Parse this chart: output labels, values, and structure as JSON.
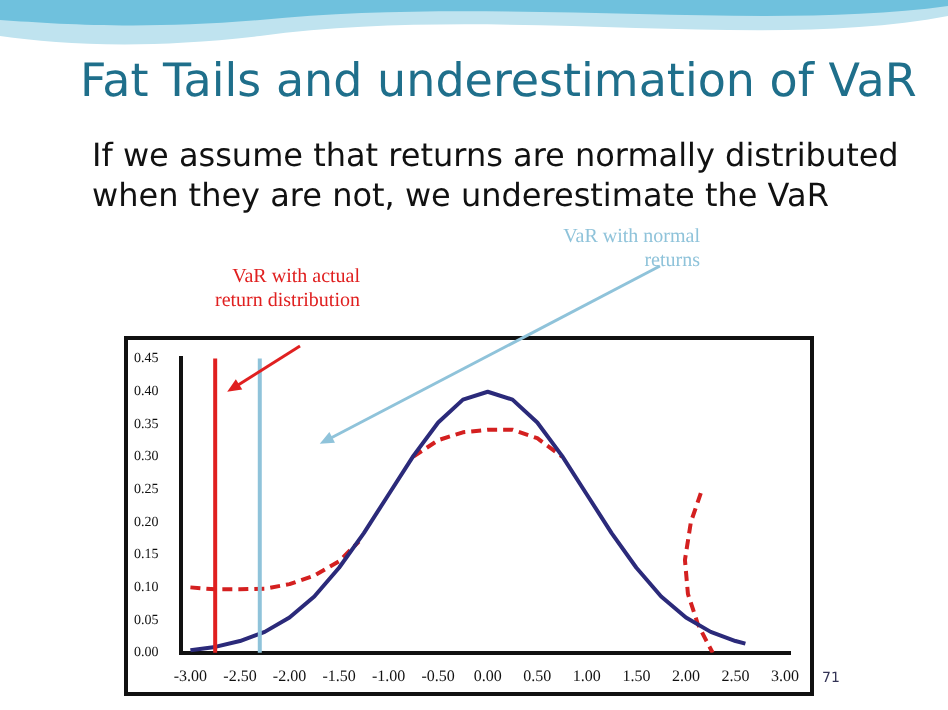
{
  "chart_data": {
    "type": "line",
    "title": "Fat Tails and underestimation of VaR",
    "subtitle": "If we assume that returns are normally distributed when they are not, we underestimate the VaR",
    "xlim": [
      -3.1,
      3.05
    ],
    "xticks": [
      {
        "value": -3,
        "label": "-3.00"
      },
      {
        "value": -2.5,
        "label": "-2.50"
      },
      {
        "value": -2,
        "label": "-2.00"
      },
      {
        "value": -1.5,
        "label": "-1.50"
      },
      {
        "value": -1,
        "label": "-1.00"
      },
      {
        "value": -0.5,
        "label": "-0.50"
      },
      {
        "value": 0,
        "label": "0.00"
      },
      {
        "value": 0.5,
        "label": "0.50"
      },
      {
        "value": 1,
        "label": "1.00"
      },
      {
        "value": 1.5,
        "label": "1.50"
      },
      {
        "value": 2,
        "label": "2.00"
      },
      {
        "value": 2.5,
        "label": "2.50"
      },
      {
        "value": 3,
        "label": "3.00"
      }
    ],
    "ylim": [
      0,
      0.45
    ],
    "yticks": [
      {
        "value": 0,
        "label": "0.00"
      },
      {
        "value": 0.05,
        "label": "0.05"
      },
      {
        "value": 0.1,
        "label": "0.10"
      },
      {
        "value": 0.15,
        "label": "0.15"
      },
      {
        "value": 0.2,
        "label": "0.20"
      },
      {
        "value": 0.25,
        "label": "0.25"
      },
      {
        "value": 0.3,
        "label": "0.30"
      },
      {
        "value": 0.35,
        "label": "0.35"
      },
      {
        "value": 0.4,
        "label": "0.40"
      },
      {
        "value": 0.45,
        "label": "0.45"
      }
    ],
    "grid": false,
    "legend": false,
    "marker": "none",
    "series": [
      {
        "color": "#2b2a7a",
        "line_style": "solid",
        "x": [
          -3,
          -2.75,
          -2.5,
          -2.25,
          -2,
          -1.75,
          -1.5,
          -1.25,
          -1,
          -0.75,
          -0.5,
          -0.25,
          0,
          0.25,
          0.5,
          0.75,
          1,
          1.25,
          1.5,
          1.75,
          2,
          2.25,
          2.5,
          2.6
        ],
        "values": [
          0.004,
          0.009,
          0.018,
          0.032,
          0.054,
          0.086,
          0.13,
          0.183,
          0.242,
          0.301,
          0.352,
          0.387,
          0.399,
          0.387,
          0.352,
          0.301,
          0.242,
          0.183,
          0.13,
          0.086,
          0.054,
          0.032,
          0.018,
          0.014
        ]
      },
      {
        "color": "#d42020",
        "line_style": "dashed",
        "x": [
          -3,
          -2.75,
          -2.5,
          -2.25,
          -2,
          -1.75,
          -1.5,
          -1.3
        ],
        "values": [
          0.1,
          0.097,
          0.097,
          0.098,
          0.105,
          0.118,
          0.14,
          0.17
        ]
      },
      {
        "color": "#d42020",
        "line_style": "dashed",
        "x": [
          -0.75,
          -0.5,
          -0.25,
          0,
          0.25,
          0.5,
          0.75
        ],
        "values": [
          0.3,
          0.325,
          0.337,
          0.341,
          0.341,
          0.328,
          0.3
        ]
      },
      {
        "color": "#d42020",
        "line_style": "dashed",
        "x": [
          2.15,
          2.05,
          1.99,
          2.02,
          2.12,
          2.2,
          2.27
        ],
        "values": [
          0.244,
          0.2,
          0.142,
          0.09,
          0.044,
          0.02,
          0.0
        ]
      }
    ],
    "ref_lines": [
      {
        "axis": "x",
        "value": -2.75,
        "label": "VaR with actual return distribution",
        "color": "#e02020"
      },
      {
        "axis": "x",
        "value": -2.3,
        "label": "VaR with normal returns",
        "color": "#8fc3da"
      }
    ],
    "annotations": [
      "71"
    ]
  }
}
